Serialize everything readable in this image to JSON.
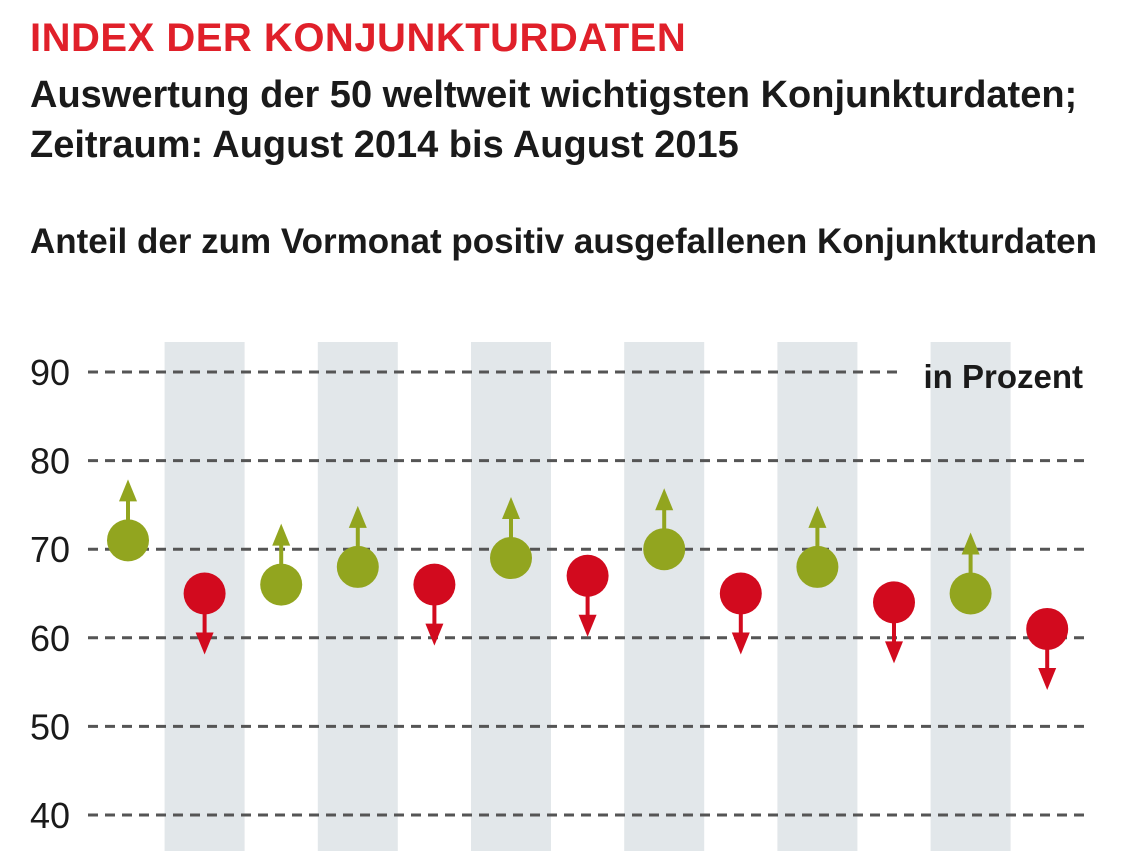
{
  "title": "INDEX DER KONJUNKTURDATEN",
  "subtitle": "Auswertung der 50 weltweit wichtigsten Konjunkturdaten; Zeitraum: August 2014 bis August 2015",
  "chart_heading": "Anteil der zum Vormonat positiv ausgefallenen Konjunkturdaten",
  "colors": {
    "positive": "#92a51f",
    "negative": "#d20a1e",
    "band": "#e2e7ea",
    "grid": "#555555",
    "title": "#e0202a"
  },
  "chart_data": {
    "type": "scatter",
    "title": "Anteil der zum Vormonat positiv ausgefallenen Konjunkturdaten",
    "unit_label": "in Prozent",
    "ylim": [
      40,
      90
    ],
    "yticks": [
      90,
      80,
      70,
      60,
      50,
      40
    ],
    "grid": true,
    "legend": "none",
    "series": [
      {
        "values": [
          71,
          65,
          66,
          68,
          66,
          69,
          67,
          70,
          65,
          68,
          64,
          65,
          61
        ],
        "direction": [
          "up",
          "down",
          "up",
          "up",
          "down",
          "up",
          "down",
          "up",
          "down",
          "up",
          "down",
          "up",
          "down"
        ]
      }
    ]
  }
}
